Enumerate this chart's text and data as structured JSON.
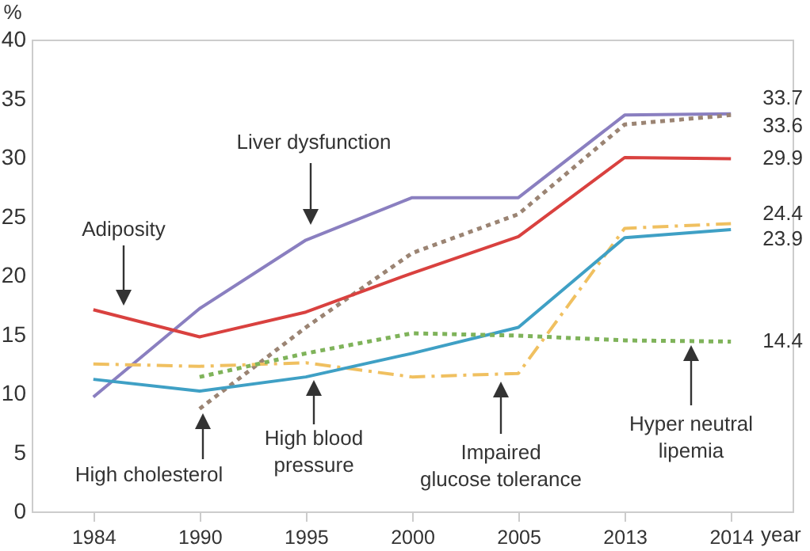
{
  "chart_data": {
    "type": "line",
    "xlabel": "year",
    "ylabel": "%",
    "categories": [
      "1984",
      "1990",
      "1995",
      "2000",
      "2005",
      "2013",
      "2014"
    ],
    "ylim": [
      0,
      40
    ],
    "yticks": [
      0,
      5,
      10,
      15,
      20,
      25,
      30,
      35,
      40
    ],
    "grid": false,
    "series": [
      {
        "color": "#8a7fc0",
        "line_style": "solid",
        "values": [
          9.7,
          17.2,
          23.0,
          26.6,
          26.6,
          33.6,
          33.7
        ],
        "value_labels": [
          null,
          null,
          null,
          null,
          null,
          null,
          "33.7"
        ]
      },
      {
        "color": "#9b8473",
        "line_style": "dotted",
        "values": [
          null,
          8.7,
          15.6,
          21.9,
          25.2,
          32.8,
          33.6
        ],
        "value_labels": [
          null,
          null,
          null,
          null,
          null,
          null,
          "33.6"
        ]
      },
      {
        "color": "#d9413f",
        "line_style": "solid",
        "values": [
          17.1,
          14.8,
          16.9,
          20.2,
          23.3,
          30.0,
          29.9
        ],
        "value_labels": [
          null,
          null,
          null,
          null,
          null,
          null,
          "29.9"
        ]
      },
      {
        "color": "#f0c060",
        "line_style": "dashed",
        "values": [
          12.5,
          12.3,
          12.6,
          11.4,
          11.7,
          24.0,
          24.4
        ],
        "value_labels": [
          null,
          null,
          null,
          null,
          null,
          null,
          "24.4"
        ]
      },
      {
        "color": "#3fa0c5",
        "line_style": "solid",
        "values": [
          11.2,
          10.2,
          11.4,
          13.4,
          15.6,
          23.2,
          23.9
        ],
        "value_labels": [
          null,
          null,
          null,
          null,
          null,
          null,
          "23.9"
        ]
      },
      {
        "color": "#7fb35a",
        "line_style": "dotted",
        "values": [
          null,
          11.4,
          13.4,
          15.1,
          14.9,
          14.5,
          14.4
        ],
        "value_labels": [
          null,
          null,
          null,
          null,
          null,
          null,
          "14.4"
        ]
      }
    ],
    "annotations": [
      "Liver dysfunction",
      "Adiposity",
      "High cholesterol",
      "High blood\npressure",
      "Impaired\nglucose tolerance",
      "Hyper neutral\nlipemia"
    ]
  }
}
